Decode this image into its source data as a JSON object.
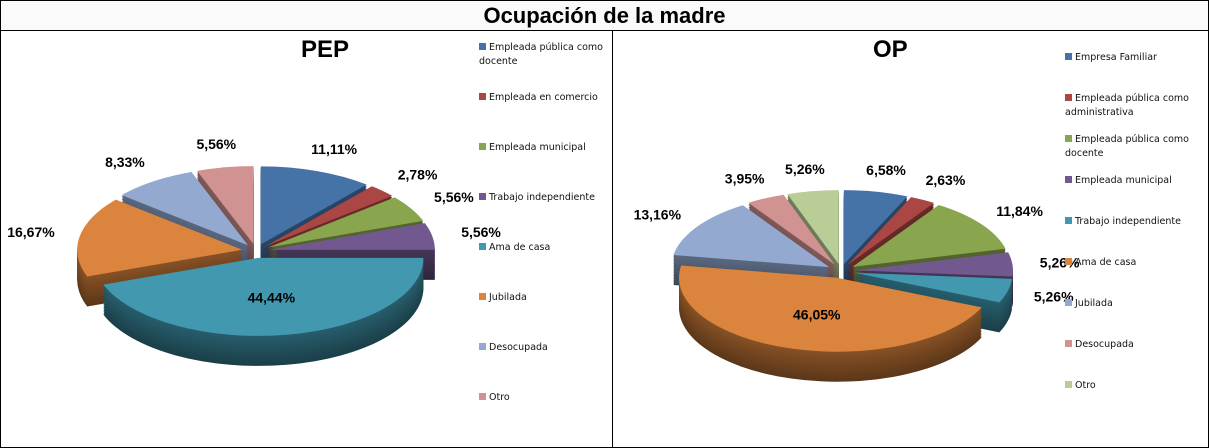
{
  "title": "Ocupación de la madre",
  "chart_data": [
    {
      "type": "pie",
      "title": "PEP",
      "categories": [
        "Empleada pública como docente",
        "Empleada en comercio",
        "Empleada municipal",
        "Trabajo independiente",
        "Ama de casa",
        "Jubilada",
        "Desocupada",
        "Otro"
      ],
      "values": [
        11.11,
        2.78,
        5.56,
        5.56,
        44.44,
        16.67,
        8.33,
        5.56
      ],
      "labels": [
        "11,11%",
        "2,78%",
        "5,56%",
        "5,56%",
        "44,44%",
        "16,67%",
        "8,33%",
        "5,56%"
      ],
      "colors": [
        "#4572a7",
        "#aa4643",
        "#89a54e",
        "#71588f",
        "#4198af",
        "#db843d",
        "#93a9cf",
        "#d19392"
      ],
      "legend": "right",
      "style": "3d-exploded"
    },
    {
      "type": "pie",
      "title": "OP",
      "categories": [
        "Empresa Familiar",
        "Empleada pública como administrativa",
        "Empleada pública como docente",
        "Empleada municipal",
        "Trabajo independiente",
        "Ama de casa",
        "Jubilada",
        "Desocupada",
        "Otro"
      ],
      "values": [
        6.58,
        2.63,
        11.84,
        5.26,
        5.26,
        46.05,
        13.16,
        3.95,
        5.26
      ],
      "labels": [
        "6,58%",
        "2,63%",
        "11,84%",
        "5,26%",
        "5,26%",
        "46,05%",
        "13,16%",
        "3,95%",
        "5,26%"
      ],
      "colors": [
        "#4572a7",
        "#aa4643",
        "#89a54e",
        "#71588f",
        "#4198af",
        "#db843d",
        "#93a9cf",
        "#d19392",
        "#b9cd96"
      ],
      "legend": "right",
      "style": "3d-exploded"
    }
  ]
}
